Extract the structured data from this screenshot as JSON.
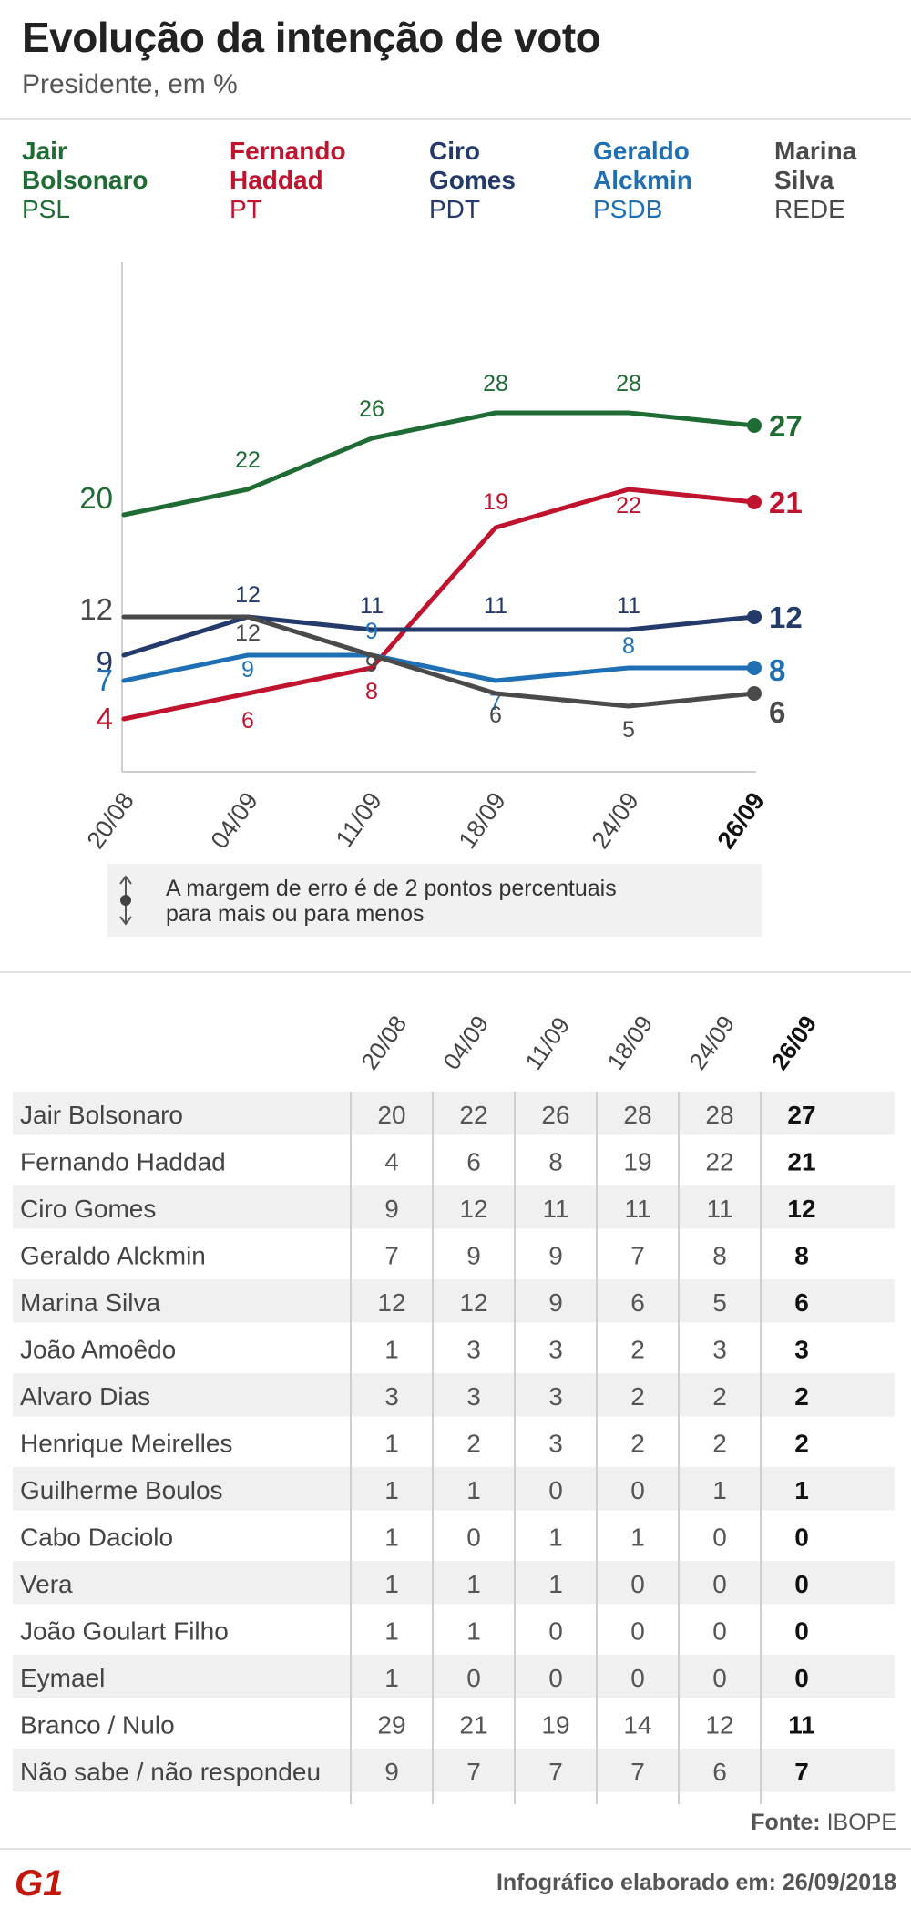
{
  "header": {
    "title": "Evolução da intenção de voto",
    "subtitle": "Presidente, em %"
  },
  "legend": [
    {
      "name_line1": "Jair",
      "name_line2": "Bolsonaro",
      "party": "PSL",
      "color": "#1e6b34"
    },
    {
      "name_line1": "Fernando",
      "name_line2": "Haddad",
      "party": "PT",
      "color": "#c0132e"
    },
    {
      "name_line1": "Ciro",
      "name_line2": "Gomes",
      "party": "PDT",
      "color": "#243a6b"
    },
    {
      "name_line1": "Geraldo",
      "name_line2": "Alckmin",
      "party": "PSDB",
      "color": "#1f6fb5"
    },
    {
      "name_line1": "Marina",
      "name_line2": "Silva",
      "party": "REDE",
      "color": "#4a4a4a"
    }
  ],
  "chart_data": {
    "type": "line",
    "x": [
      "20/08",
      "04/09",
      "11/09",
      "18/09",
      "24/09",
      "26/09"
    ],
    "ylim": [
      0,
      40
    ],
    "series": [
      {
        "name": "Jair Bolsonaro",
        "color": "#1e6b34",
        "values": [
          20,
          22,
          26,
          28,
          28,
          27
        ]
      },
      {
        "name": "Fernando Haddad",
        "color": "#c0132e",
        "values": [
          4,
          6,
          8,
          19,
          22,
          21
        ]
      },
      {
        "name": "Ciro Gomes",
        "color": "#243a6b",
        "values": [
          9,
          12,
          11,
          11,
          11,
          12
        ]
      },
      {
        "name": "Geraldo Alckmin",
        "color": "#1f6fb5",
        "values": [
          7,
          9,
          9,
          7,
          8,
          8
        ]
      },
      {
        "name": "Marina Silva",
        "color": "#4a4a4a",
        "values": [
          12,
          12,
          9,
          6,
          5,
          6
        ]
      }
    ]
  },
  "note": {
    "line1": "A margem de erro é de 2 pontos percentuais",
    "line2": "para mais ou para menos"
  },
  "table": {
    "dates": [
      "20/08",
      "04/09",
      "11/09",
      "18/09",
      "24/09",
      "26/09"
    ],
    "rows": [
      {
        "name": "Jair Bolsonaro",
        "values": [
          "20",
          "22",
          "26",
          "28",
          "28",
          "27"
        ]
      },
      {
        "name": "Fernando Haddad",
        "values": [
          "4",
          "6",
          "8",
          "19",
          "22",
          "21"
        ]
      },
      {
        "name": "Ciro Gomes",
        "values": [
          "9",
          "12",
          "11",
          "11",
          "11",
          "12"
        ]
      },
      {
        "name": "Geraldo Alckmin",
        "values": [
          "7",
          "9",
          "9",
          "7",
          "8",
          "8"
        ]
      },
      {
        "name": "Marina Silva",
        "values": [
          "12",
          "12",
          "9",
          "6",
          "5",
          "6"
        ]
      },
      {
        "name": "João Amoêdo",
        "values": [
          "1",
          "3",
          "3",
          "2",
          "3",
          "3"
        ]
      },
      {
        "name": "Alvaro Dias",
        "values": [
          "3",
          "3",
          "3",
          "2",
          "2",
          "2"
        ]
      },
      {
        "name": "Henrique Meirelles",
        "values": [
          "1",
          "2",
          "3",
          "2",
          "2",
          "2"
        ]
      },
      {
        "name": "Guilherme Boulos",
        "values": [
          "1",
          "1",
          "0",
          "0",
          "1",
          "1"
        ]
      },
      {
        "name": "Cabo Daciolo",
        "values": [
          "1",
          "0",
          "1",
          "1",
          "0",
          "0"
        ]
      },
      {
        "name": "Vera",
        "values": [
          "1",
          "1",
          "1",
          "0",
          "0",
          "0"
        ]
      },
      {
        "name": "João Goulart Filho",
        "values": [
          "1",
          "1",
          "0",
          "0",
          "0",
          "0"
        ]
      },
      {
        "name": "Eymael",
        "values": [
          "1",
          "0",
          "0",
          "0",
          "0",
          "0"
        ]
      },
      {
        "name": "Branco / Nulo",
        "values": [
          "29",
          "21",
          "19",
          "14",
          "12",
          "11"
        ]
      },
      {
        "name": "Não sabe / não respondeu",
        "values": [
          "9",
          "7",
          "7",
          "7",
          "6",
          "7"
        ]
      }
    ]
  },
  "footer": {
    "source_label": "Fonte:",
    "source_value": "IBOPE",
    "logo_text": "G1",
    "date_label": "Infográfico elaborado em:",
    "date_value": "26/09/2018"
  }
}
